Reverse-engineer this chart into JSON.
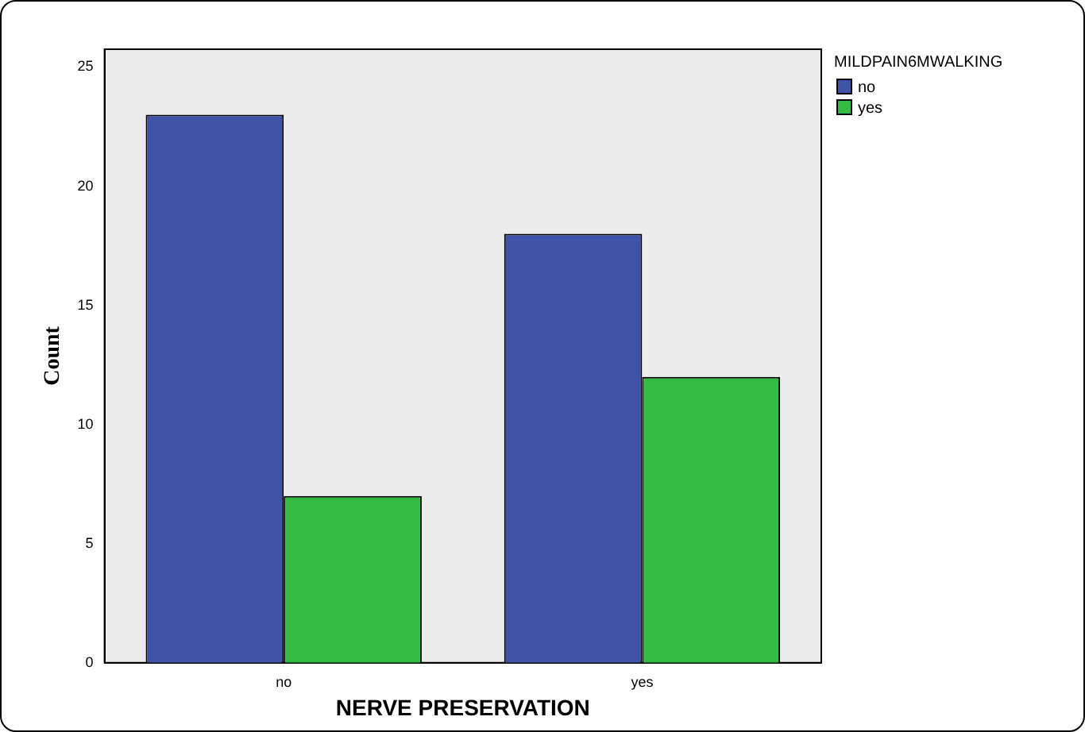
{
  "chart_data": {
    "type": "bar",
    "xlabel": "NERVE PRESERVATION",
    "ylabel": "Count",
    "legend_title": "MILDPAIN6MWALKING",
    "categories": [
      "no",
      "yes"
    ],
    "series": [
      {
        "name": "no",
        "color": "#3f54a8",
        "values": [
          23,
          18
        ]
      },
      {
        "name": "yes",
        "color": "#33bb44",
        "values": [
          7,
          12
        ]
      }
    ],
    "ylim": [
      0,
      25.75
    ],
    "yticks": [
      0,
      5,
      10,
      15,
      20,
      25
    ],
    "grid": false,
    "legend": "top right"
  }
}
